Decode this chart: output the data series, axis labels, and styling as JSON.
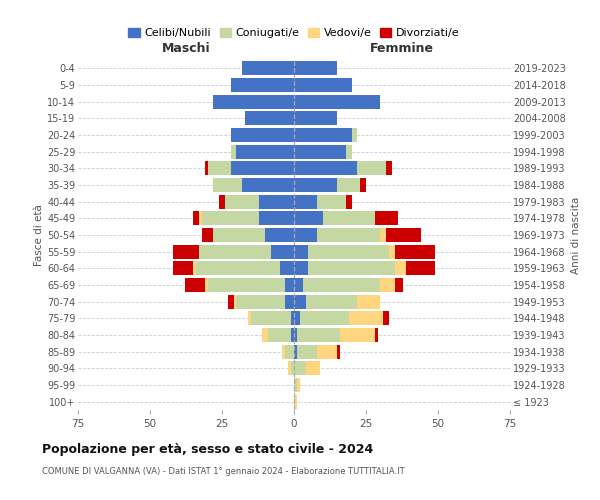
{
  "age_groups": [
    "100+",
    "95-99",
    "90-94",
    "85-89",
    "80-84",
    "75-79",
    "70-74",
    "65-69",
    "60-64",
    "55-59",
    "50-54",
    "45-49",
    "40-44",
    "35-39",
    "30-34",
    "25-29",
    "20-24",
    "15-19",
    "10-14",
    "5-9",
    "0-4"
  ],
  "birth_years": [
    "≤ 1923",
    "1924-1928",
    "1929-1933",
    "1934-1938",
    "1939-1943",
    "1944-1948",
    "1949-1953",
    "1954-1958",
    "1959-1963",
    "1964-1968",
    "1969-1973",
    "1974-1978",
    "1979-1983",
    "1984-1988",
    "1989-1993",
    "1994-1998",
    "1999-2003",
    "2004-2008",
    "2009-2013",
    "2014-2018",
    "2019-2023"
  ],
  "colors": {
    "celibi": "#4472C4",
    "coniugati": "#c5d8a4",
    "vedovi": "#FFD580",
    "divorziati": "#CC0000"
  },
  "maschi": {
    "celibi": [
      0,
      0,
      0,
      0,
      1,
      1,
      3,
      3,
      5,
      8,
      10,
      12,
      12,
      18,
      22,
      20,
      22,
      17,
      28,
      22,
      18
    ],
    "coniugati": [
      0,
      0,
      1,
      3,
      8,
      14,
      17,
      27,
      29,
      25,
      18,
      20,
      12,
      10,
      8,
      2,
      0,
      0,
      0,
      0,
      0
    ],
    "vedovi": [
      0,
      0,
      1,
      1,
      2,
      1,
      1,
      1,
      1,
      0,
      0,
      1,
      0,
      0,
      0,
      0,
      0,
      0,
      0,
      0,
      0
    ],
    "divorziati": [
      0,
      0,
      0,
      0,
      0,
      0,
      2,
      7,
      7,
      9,
      4,
      2,
      2,
      0,
      1,
      0,
      0,
      0,
      0,
      0,
      0
    ]
  },
  "femmine": {
    "celibi": [
      0,
      0,
      0,
      1,
      1,
      2,
      4,
      3,
      5,
      5,
      8,
      10,
      8,
      15,
      22,
      18,
      20,
      15,
      30,
      20,
      15
    ],
    "coniugati": [
      0,
      1,
      4,
      7,
      15,
      17,
      18,
      27,
      30,
      28,
      22,
      18,
      10,
      8,
      10,
      2,
      2,
      0,
      0,
      0,
      0
    ],
    "vedovi": [
      1,
      1,
      5,
      7,
      12,
      12,
      8,
      5,
      4,
      2,
      2,
      0,
      0,
      0,
      0,
      0,
      0,
      0,
      0,
      0,
      0
    ],
    "divorziati": [
      0,
      0,
      0,
      1,
      1,
      2,
      0,
      3,
      10,
      14,
      12,
      8,
      2,
      2,
      2,
      0,
      0,
      0,
      0,
      0,
      0
    ]
  },
  "xlim": 75,
  "title": "Popolazione per età, sesso e stato civile - 2024",
  "subtitle": "COMUNE DI VALGANNA (VA) - Dati ISTAT 1° gennaio 2024 - Elaborazione TUTTITALIA.IT",
  "xlabel_left": "Maschi",
  "xlabel_right": "Femmine",
  "ylabel_left": "Fasce di età",
  "ylabel_right": "Anni di nascita",
  "legend_labels": [
    "Celibi/Nubili",
    "Coniugati/e",
    "Vedovi/e",
    "Divorziati/e"
  ],
  "bg_color": "#ffffff",
  "grid_color": "#cccccc"
}
